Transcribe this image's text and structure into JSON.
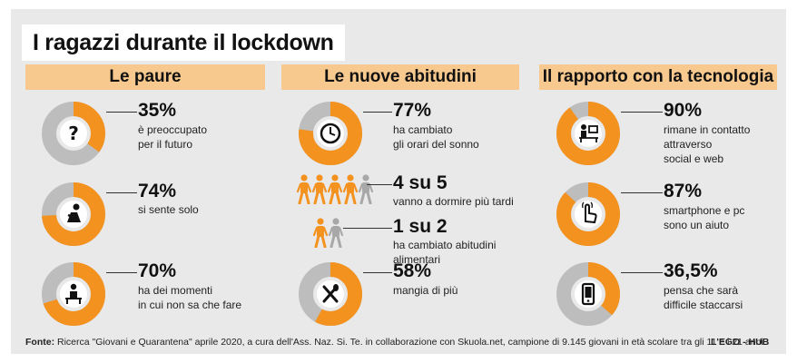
{
  "title": "I ragazzi durante il lockdown",
  "colors": {
    "accent": "#f4921f",
    "track": "#bdbdbd",
    "header": "#f7c98f",
    "panel": "#e9e9e9"
  },
  "columns": [
    {
      "header": "Le paure",
      "items": [
        {
          "icon": "question-icon",
          "value_pct": 35,
          "pct": "35%",
          "lines": [
            "è preoccupato",
            "per il futuro"
          ]
        },
        {
          "icon": "sad-person-icon",
          "value_pct": 74,
          "pct": "74%",
          "lines": [
            "si sente solo"
          ]
        },
        {
          "icon": "bored-desk-icon",
          "value_pct": 70,
          "pct": "70%",
          "lines": [
            "ha dei momenti",
            "in cui non sa che fare"
          ]
        }
      ]
    },
    {
      "header": "Le nuove abitudini",
      "items": [
        {
          "icon": "clock-icon",
          "value_pct": 77,
          "pct": "77%",
          "lines": [
            "ha cambiato",
            "gli orari del sonno"
          ]
        },
        {
          "icon": "people-icon",
          "ratio": "4 su 5",
          "highlighted": 4,
          "total": 5,
          "lines": [
            "vanno a dormire più tardi"
          ]
        },
        {
          "icon": "people-icon",
          "ratio": "1 su 2",
          "highlighted": 1,
          "total": 2,
          "lines": [
            "ha cambiato abitudini",
            "alimentari"
          ]
        },
        {
          "icon": "cutlery-icon",
          "value_pct": 58,
          "pct": "58%",
          "lines": [
            "mangia di più"
          ]
        }
      ]
    },
    {
      "header": "Il rapporto con la tecnologia",
      "items": [
        {
          "icon": "computer-desk-icon",
          "value_pct": 90,
          "pct": "90%",
          "lines": [
            "rimane in contatto",
            "attraverso",
            "social e web"
          ]
        },
        {
          "icon": "touch-hand-icon",
          "value_pct": 87,
          "pct": "87%",
          "lines": [
            "smartphone e pc",
            "sono un aiuto"
          ]
        },
        {
          "icon": "phone-icon",
          "value_pct": 36.5,
          "pct": "36,5%",
          "lines": [
            "pensa che sarà",
            "difficile staccarsi"
          ]
        }
      ]
    }
  ],
  "footer": {
    "label": "Fonte:",
    "text": "Ricerca \"Giovani e Quarantena\" aprile 2020, a cura dell'Ass. Naz. Si. Te. in collaborazione con Skuola.net, campione di 9.145 giovani in età scolare tra gli 11 e i 21 anni",
    "brand": "L'EGO - HUB"
  }
}
